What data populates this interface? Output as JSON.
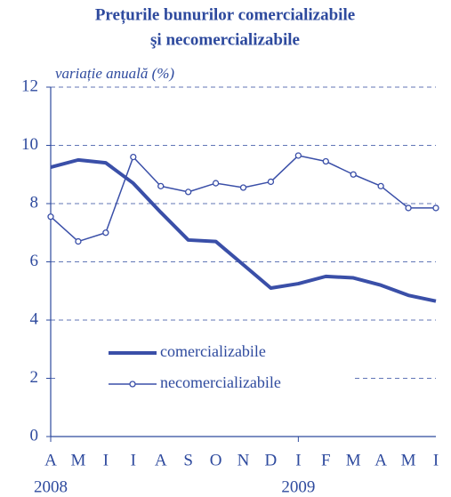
{
  "chart_data": {
    "type": "line",
    "title": "Prețurile bunurilor comercializabile",
    "subtitle": "şi necomercializabile",
    "y_label": "variație anuală (%)",
    "categories": [
      "A",
      "M",
      "I",
      "I",
      "A",
      "S",
      "O",
      "N",
      "D",
      "I",
      "F",
      "M",
      "A",
      "M",
      "I"
    ],
    "years": [
      "2008",
      null,
      null,
      null,
      null,
      null,
      null,
      null,
      null,
      "2009",
      null,
      null,
      null,
      null,
      null
    ],
    "series": [
      {
        "name": "comercializabile",
        "color": "#3a4fa8",
        "values": [
          9.25,
          9.5,
          9.4,
          8.7,
          7.7,
          6.75,
          6.7,
          5.9,
          5.1,
          5.25,
          5.5,
          5.45,
          5.2,
          4.85,
          4.65
        ]
      },
      {
        "name": "necomercializabile",
        "color": "#3a4fa8",
        "values": [
          7.55,
          6.7,
          7.0,
          9.6,
          8.6,
          8.4,
          8.7,
          8.55,
          8.75,
          9.65,
          9.45,
          9.0,
          8.6,
          7.85,
          7.85
        ]
      }
    ],
    "ylim": [
      0,
      12
    ],
    "yticks": [
      0,
      2,
      4,
      6,
      8,
      10,
      12
    ],
    "grid": true
  }
}
